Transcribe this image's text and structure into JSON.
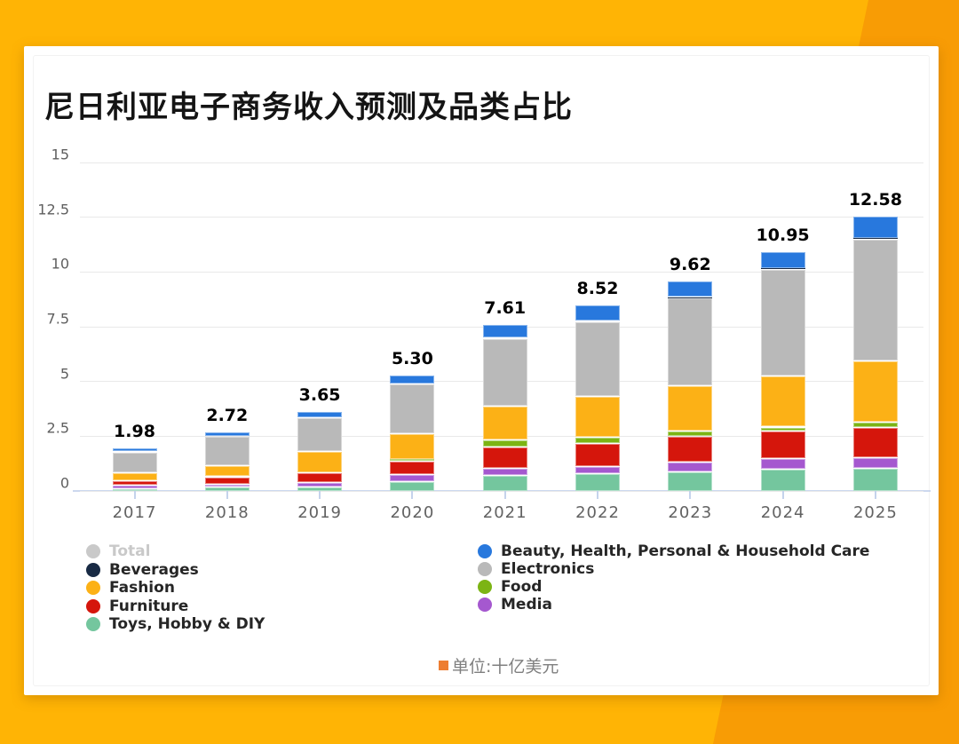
{
  "page": {
    "title": "尼日利亚电子商务收入预测及品类占比"
  },
  "colors": {
    "background": "#ffb405",
    "background_accent": "#f89c05",
    "card": "#ffffff",
    "gridline": "#e9e9e9",
    "axis_line": "#ccd8ee",
    "axis_text": "#5f5f5f"
  },
  "chart_data": {
    "type": "bar",
    "stacked": true,
    "title": "尼日利亚电子商务收入预测及品类占比",
    "unit_note": {
      "text": "单位:十亿美元",
      "marker_color": "#ed7d31"
    },
    "categories": [
      "2017",
      "2018",
      "2019",
      "2020",
      "2021",
      "2022",
      "2023",
      "2024",
      "2025"
    ],
    "total_labels": [
      "1.98",
      "2.72",
      "3.65",
      "5.30",
      "7.61",
      "8.52",
      "9.62",
      "10.95",
      "12.58"
    ],
    "series": [
      {
        "name": "Toys, Hobby & DIY",
        "color": "#74c69e",
        "values": [
          0.13,
          0.19,
          0.22,
          0.45,
          0.75,
          0.8,
          0.91,
          1.02,
          1.04
        ]
      },
      {
        "name": "Media",
        "color": "#a558cf",
        "values": [
          0.14,
          0.15,
          0.18,
          0.31,
          0.3,
          0.34,
          0.44,
          0.47,
          0.49
        ]
      },
      {
        "name": "Furniture",
        "color": "#d5160c",
        "values": [
          0.22,
          0.33,
          0.46,
          0.63,
          0.99,
          1.04,
          1.16,
          1.26,
          1.38
        ]
      },
      {
        "name": "Food",
        "color": "#7cb414",
        "values": [
          0.01,
          0.01,
          0.01,
          0.09,
          0.33,
          0.3,
          0.26,
          0.19,
          0.24
        ]
      },
      {
        "name": "Fashion",
        "color": "#fcb116",
        "values": [
          0.34,
          0.48,
          0.95,
          1.16,
          1.51,
          1.86,
          2.06,
          2.34,
          2.82
        ]
      },
      {
        "name": "Electronics",
        "color": "#b9b9b9",
        "values": [
          0.96,
          1.35,
          1.55,
          2.25,
          3.1,
          3.42,
          4.0,
          4.86,
          5.55
        ]
      },
      {
        "name": "Beverages",
        "color": "#182a44",
        "values": [
          0.01,
          0.01,
          0.01,
          0.01,
          0.02,
          0.02,
          0.04,
          0.03,
          0.04
        ]
      },
      {
        "name": "Beauty, Health, Personal & Household Care",
        "color": "#2878dd",
        "values": [
          0.17,
          0.2,
          0.27,
          0.4,
          0.61,
          0.74,
          0.75,
          0.78,
          1.02
        ]
      }
    ],
    "ylim": [
      0,
      15
    ],
    "yticks": [
      "0",
      "2.5",
      "5",
      "7.5",
      "10",
      "12.5",
      "15"
    ],
    "grid": true,
    "legend_position": "bottom",
    "legend": {
      "columns": [
        [
          {
            "label": "Total",
            "color": "#c9c9c9",
            "disabled": true
          },
          {
            "label": "Beverages",
            "color": "#182a44",
            "disabled": false
          },
          {
            "label": "Fashion",
            "color": "#fcb116",
            "disabled": false
          },
          {
            "label": "Furniture",
            "color": "#d5160c",
            "disabled": false
          },
          {
            "label": "Toys, Hobby & DIY",
            "color": "#74c69e",
            "disabled": false
          }
        ],
        [
          {
            "label": "Beauty, Health, Personal & Household Care",
            "color": "#2878dd",
            "disabled": false
          },
          {
            "label": "Electronics",
            "color": "#b9b9b9",
            "disabled": false
          },
          {
            "label": "Food",
            "color": "#7cb414",
            "disabled": false
          },
          {
            "label": "Media",
            "color": "#a558cf",
            "disabled": false
          }
        ]
      ]
    }
  }
}
